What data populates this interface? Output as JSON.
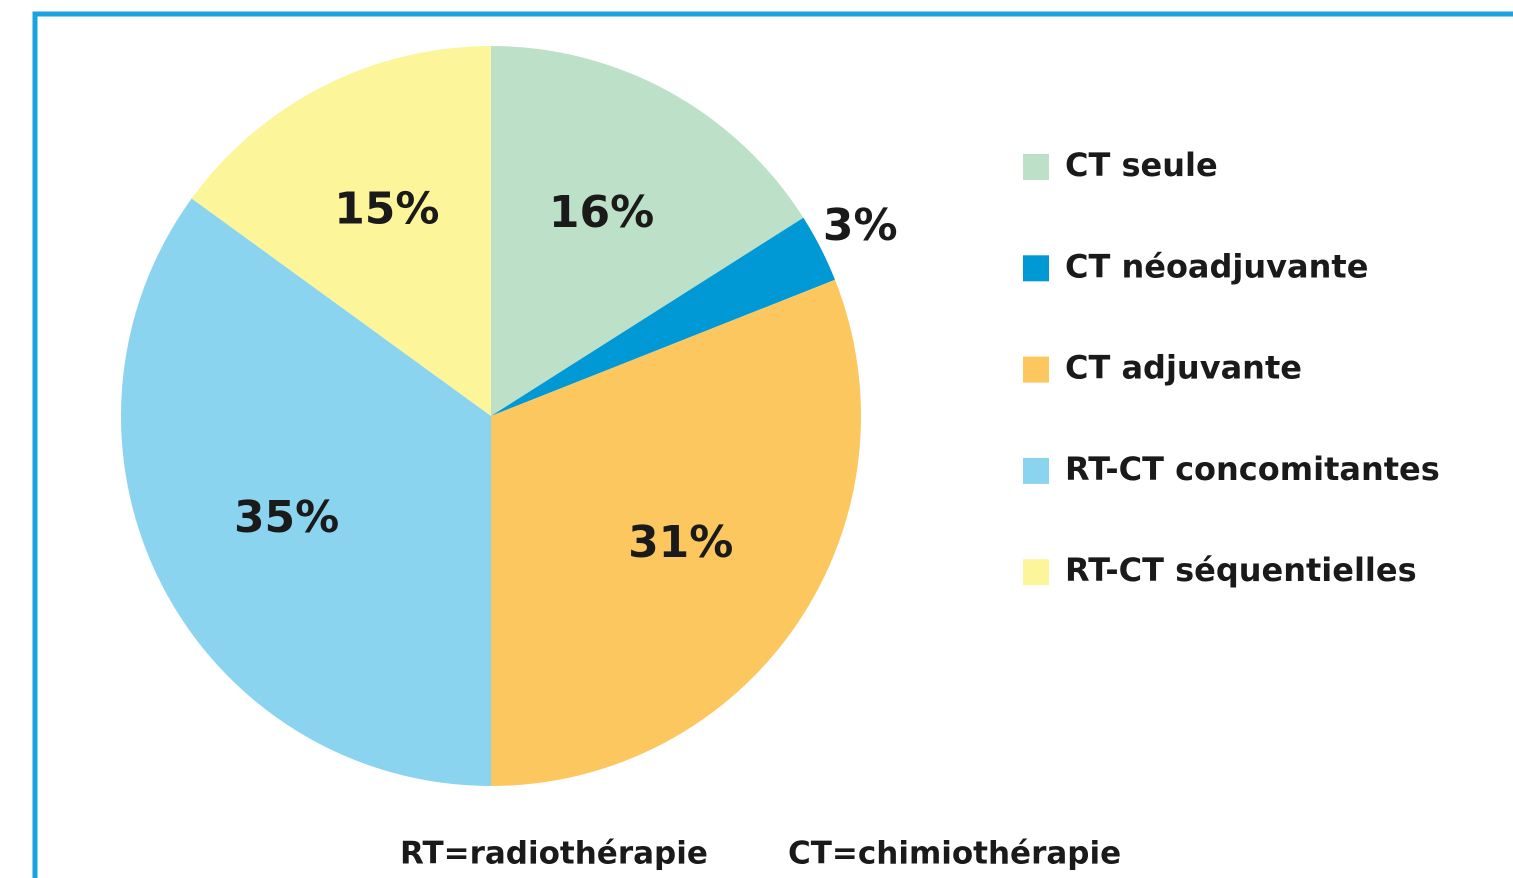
{
  "chart_data": {
    "type": "pie",
    "categories": [
      "CT seule",
      "CT néoadjuvante",
      "CT adjuvante",
      "RT-CT concomitantes",
      "RT-CT séquentielles"
    ],
    "values": [
      16,
      3,
      31,
      35,
      15
    ],
    "value_labels": [
      "16%",
      "3%",
      "31%",
      "35%",
      "15%"
    ],
    "colors": [
      "#bde0c8",
      "#0099d6",
      "#fcc75e",
      "#8ad4ef",
      "#fdf59a"
    ],
    "legend": "right",
    "notes": [
      "RT=radiothérapie",
      "CT=chimiothérapie"
    ]
  }
}
